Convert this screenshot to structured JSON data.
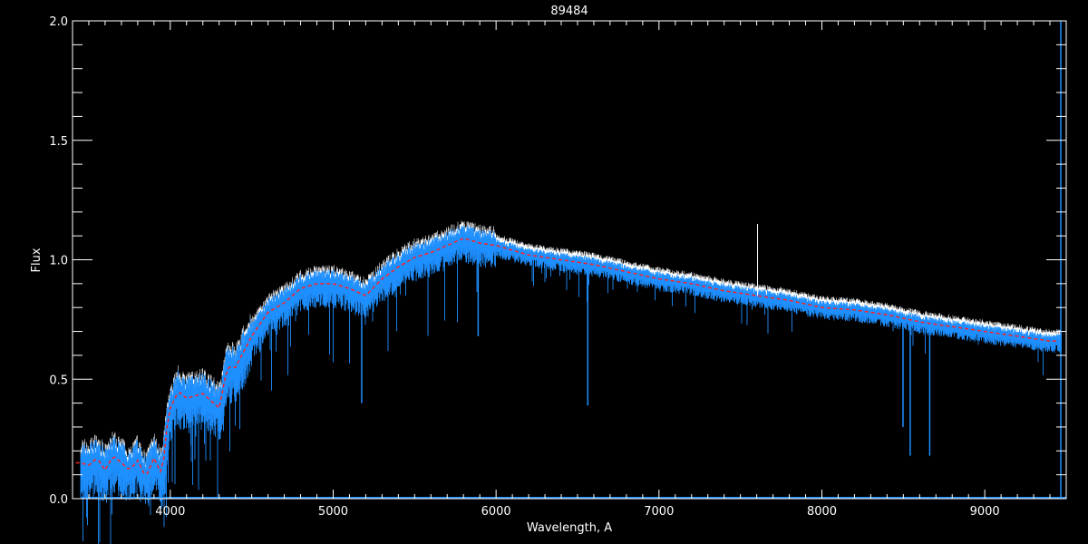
{
  "chart_data": {
    "type": "line",
    "title": "89484",
    "xlabel": "Wavelength, A",
    "ylabel": "Flux",
    "xlim": [
      3400,
      9500
    ],
    "ylim": [
      0.0,
      2.0
    ],
    "x_ticks": [
      "4000",
      "5000",
      "6000",
      "7000",
      "8000",
      "9000"
    ],
    "y_ticks": [
      "0.0",
      "0.5",
      "1.0",
      "1.5",
      "2.0"
    ],
    "grid": false,
    "colors": {
      "background": "#000000",
      "axes": "#ffffff",
      "observed": "#1e8fff",
      "observed_highlight": "#ffffff",
      "model": "#ff2020"
    },
    "series": [
      {
        "style": "model-red-dashed",
        "x": [
          3450,
          3500,
          3550,
          3600,
          3650,
          3700,
          3750,
          3800,
          3850,
          3900,
          3950,
          3980,
          4000,
          4050,
          4100,
          4200,
          4300,
          4350,
          4400,
          4500,
          4600,
          4700,
          4800,
          4900,
          5000,
          5100,
          5200,
          5300,
          5400,
          5500,
          5600,
          5700,
          5800,
          5900,
          6000,
          6100,
          6200,
          6400,
          6600,
          6800,
          7000,
          7200,
          7400,
          7600,
          7800,
          8000,
          8200,
          8400,
          8600,
          8800,
          9000,
          9200,
          9400
        ],
        "y": [
          0.15,
          0.14,
          0.17,
          0.12,
          0.18,
          0.15,
          0.12,
          0.16,
          0.09,
          0.17,
          0.1,
          0.3,
          0.38,
          0.45,
          0.42,
          0.44,
          0.38,
          0.55,
          0.55,
          0.68,
          0.78,
          0.82,
          0.88,
          0.9,
          0.9,
          0.88,
          0.85,
          0.92,
          0.97,
          1.01,
          1.03,
          1.06,
          1.09,
          1.07,
          1.06,
          1.04,
          1.02,
          1.0,
          0.98,
          0.95,
          0.92,
          0.9,
          0.87,
          0.85,
          0.83,
          0.8,
          0.79,
          0.77,
          0.74,
          0.72,
          0.7,
          0.68,
          0.66
        ]
      },
      {
        "style": "observed-blue",
        "absorption_lines": [
          {
            "x": 3934,
            "y": 0.0
          },
          {
            "x": 3968,
            "y": 0.02
          },
          {
            "x": 4305,
            "y": 0.25
          },
          {
            "x": 5175,
            "y": 0.4
          },
          {
            "x": 5890,
            "y": 0.68
          },
          {
            "x": 6563,
            "y": 0.39
          },
          {
            "x": 8498,
            "y": 0.3
          },
          {
            "x": 8542,
            "y": 0.18
          },
          {
            "x": 8662,
            "y": 0.18
          }
        ],
        "emission_lines": [
          {
            "x": 7605,
            "y": 1.15
          }
        ]
      }
    ]
  }
}
